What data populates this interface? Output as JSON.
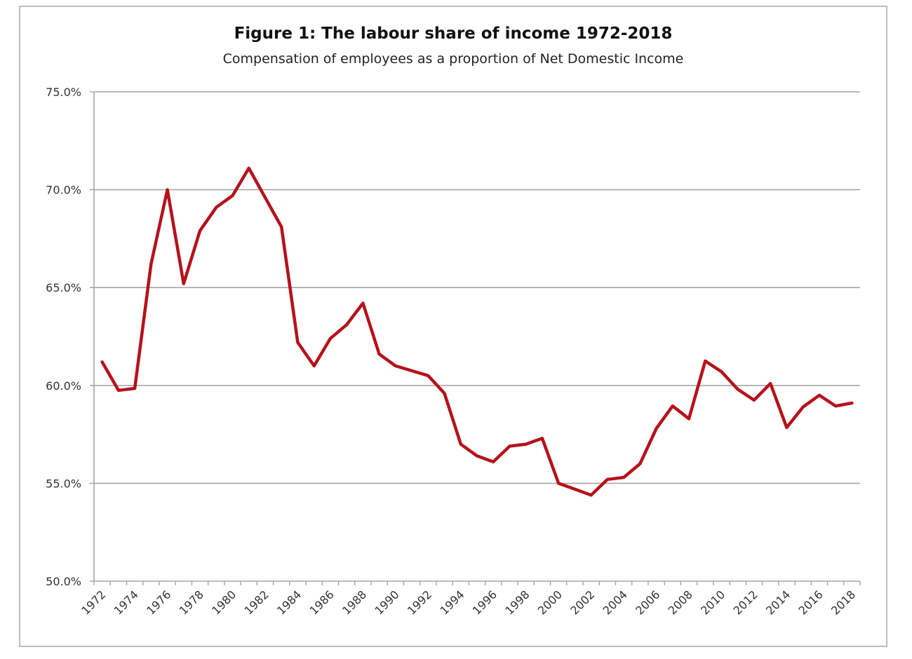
{
  "chart_data": {
    "type": "line",
    "title": "Figure 1: The labour share of income 1972-2018",
    "subtitle": "Compensation of employees as a proportion of Net Domestic Income",
    "xlabel": "",
    "ylabel": "",
    "ylim": [
      50,
      75
    ],
    "yticks": [
      "50.0%",
      "55.0%",
      "60.0%",
      "65.0%",
      "70.0%",
      "75.0%"
    ],
    "ytick_values": [
      50,
      55,
      60,
      65,
      70,
      75
    ],
    "xtick_labels": [
      "1972",
      "1974",
      "1976",
      "1978",
      "1980",
      "1982",
      "1984",
      "1986",
      "1988",
      "1990",
      "1992",
      "1994",
      "1996",
      "1998",
      "2000",
      "2002",
      "2004",
      "2006",
      "2008",
      "2010",
      "2012",
      "2014",
      "2016",
      "2018"
    ],
    "grid": "horizontal",
    "legend": "none",
    "line_color": "#b5121b",
    "x": [
      1972,
      1973,
      1974,
      1975,
      1976,
      1977,
      1978,
      1979,
      1980,
      1981,
      1982,
      1983,
      1984,
      1985,
      1986,
      1987,
      1988,
      1989,
      1990,
      1991,
      1992,
      1993,
      1994,
      1995,
      1996,
      1997,
      1998,
      1999,
      2000,
      2001,
      2002,
      2003,
      2004,
      2005,
      2006,
      2007,
      2008,
      2009,
      2010,
      2011,
      2012,
      2013,
      2014,
      2015,
      2016,
      2017,
      2018
    ],
    "values": [
      61.2,
      59.75,
      59.85,
      66.2,
      70.0,
      65.2,
      67.9,
      69.1,
      69.7,
      71.1,
      69.6,
      68.1,
      62.2,
      61.0,
      62.4,
      63.1,
      64.2,
      61.6,
      61.0,
      60.75,
      60.5,
      59.6,
      57.0,
      56.4,
      56.1,
      56.9,
      57.0,
      57.3,
      55.0,
      54.7,
      54.4,
      55.2,
      55.3,
      56.0,
      57.8,
      58.95,
      58.3,
      61.25,
      60.7,
      59.8,
      59.25,
      60.1,
      57.85,
      58.9,
      59.5,
      58.95,
      59.1
    ]
  }
}
